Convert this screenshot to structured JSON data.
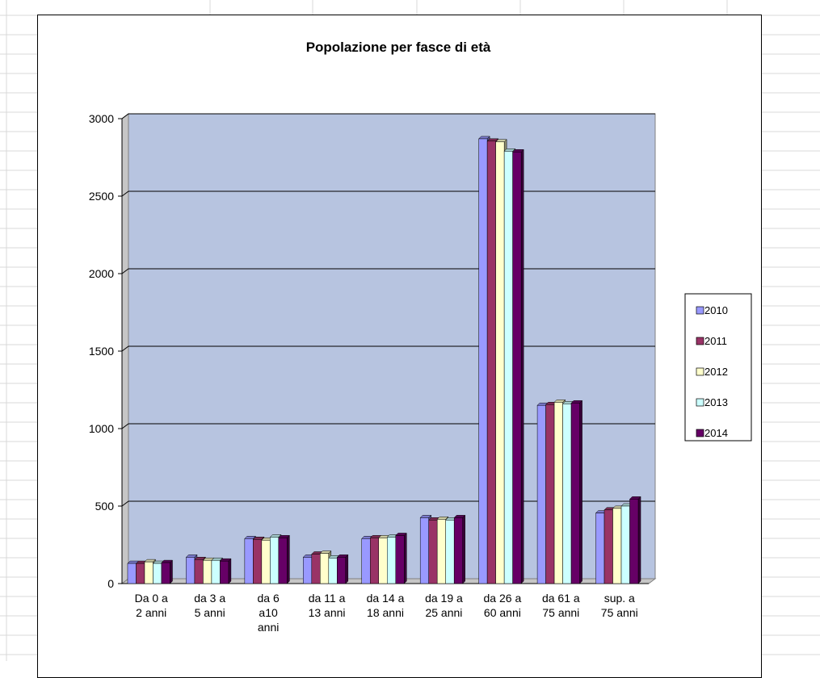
{
  "chart_data": {
    "type": "bar",
    "title": "Popolazione per fasce di età",
    "xlabel": "",
    "ylabel": "",
    "ylim": [
      0,
      3000
    ],
    "yticks": [
      0,
      500,
      1000,
      1500,
      2000,
      2500,
      3000
    ],
    "grid": true,
    "legend_position": "right",
    "categories": [
      [
        "Da 0 a",
        "2 anni"
      ],
      [
        "da 3 a",
        "5 anni"
      ],
      [
        "da 6",
        "a10",
        "anni"
      ],
      [
        "da 11 a",
        "13 anni"
      ],
      [
        "da 14 a",
        "18 anni"
      ],
      [
        "da 19 a",
        "25 anni"
      ],
      [
        "da 26 a",
        "60 anni"
      ],
      [
        "da 61 a",
        "75 anni"
      ],
      [
        "sup. a",
        "75 anni"
      ]
    ],
    "series": [
      {
        "name": "2010",
        "color": "#9999ff",
        "values": [
          130,
          170,
          290,
          170,
          290,
          425,
          2870,
          1150,
          455
        ]
      },
      {
        "name": "2011",
        "color": "#993366",
        "values": [
          130,
          155,
          285,
          190,
          295,
          410,
          2855,
          1155,
          475
        ]
      },
      {
        "name": "2012",
        "color": "#ffffcc",
        "values": [
          140,
          150,
          280,
          195,
          295,
          415,
          2850,
          1170,
          485
        ]
      },
      {
        "name": "2013",
        "color": "#ccffff",
        "values": [
          130,
          150,
          300,
          165,
          300,
          410,
          2790,
          1160,
          500
        ]
      },
      {
        "name": "2014",
        "color": "#660066",
        "values": [
          135,
          145,
          295,
          170,
          310,
          425,
          2785,
          1165,
          545
        ]
      }
    ],
    "plot_background": "#b7c4e0",
    "wall_color": "#c6c6c6"
  }
}
